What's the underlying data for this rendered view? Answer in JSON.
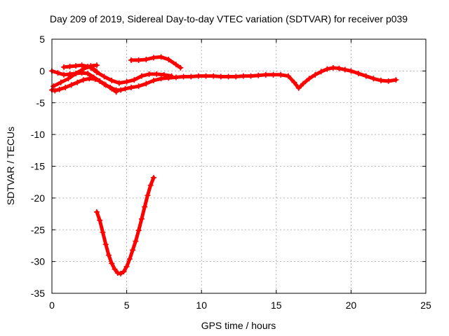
{
  "chart_data": {
    "type": "scatter",
    "title": "Day 209 of 2019, Sidereal Day-to-day VTEC variation (SDTVAR) for receiver p039",
    "xlabel": "GPS time / hours",
    "ylabel": "SDTVAR / TECUs",
    "xlim": [
      0,
      25
    ],
    "ylim": [
      -35,
      5
    ],
    "xticks": [
      0,
      5,
      10,
      15,
      20,
      25
    ],
    "yticks": [
      5,
      0,
      -5,
      -10,
      -15,
      -20,
      -25,
      -30,
      -35
    ],
    "grid": true,
    "legend": "none",
    "marker": "plus",
    "series_color": "#ff0000",
    "series": [
      {
        "name": "main-trace",
        "x": [
          0.0,
          0.2,
          0.5,
          0.9,
          1.3,
          1.7,
          2.1,
          2.5,
          2.9,
          3.2,
          3.5,
          3.9,
          4.3,
          4.6,
          4.9,
          5.3,
          5.8,
          6.3,
          6.8,
          7.3,
          7.8,
          8.3,
          8.8,
          9.3,
          9.8,
          10.3,
          10.8,
          11.3,
          11.8,
          12.3,
          12.8,
          13.3,
          13.8,
          14.3,
          14.8,
          15.3,
          15.8,
          16.2,
          16.5,
          16.8,
          17.2,
          17.6,
          18.0,
          18.4,
          18.8,
          19.2,
          19.6,
          20.0,
          20.5,
          21.0,
          21.5,
          22.0,
          22.5,
          23.0
        ],
        "y": [
          -3.0,
          -3.1,
          -2.9,
          -2.6,
          -2.2,
          -1.8,
          -1.4,
          -1.2,
          -1.3,
          -1.6,
          -2.1,
          -2.6,
          -3.0,
          -3.0,
          -2.8,
          -2.6,
          -2.4,
          -2.0,
          -1.5,
          -1.2,
          -1.1,
          -1.0,
          -0.9,
          -0.9,
          -0.8,
          -0.8,
          -0.8,
          -0.9,
          -0.9,
          -0.9,
          -0.8,
          -0.8,
          -0.7,
          -0.6,
          -0.6,
          -0.6,
          -0.8,
          -1.8,
          -2.7,
          -2.0,
          -1.2,
          -0.6,
          -0.1,
          0.3,
          0.5,
          0.4,
          0.2,
          0.0,
          -0.4,
          -0.8,
          -1.2,
          -1.5,
          -1.6,
          -1.4
        ]
      },
      {
        "name": "early-upper-trace",
        "x": [
          0.0,
          0.4,
          0.8,
          1.2,
          1.6,
          2.0,
          2.4,
          2.8,
          3.2,
          3.6,
          4.0,
          4.3
        ],
        "y": [
          0.0,
          -0.3,
          -0.6,
          -0.5,
          -0.4,
          -0.3,
          -0.4,
          -1.0,
          -1.6,
          -2.2,
          -2.8,
          -3.3
        ]
      },
      {
        "name": "hump-trace",
        "x": [
          0.8,
          1.2,
          1.6,
          2.0,
          2.4,
          2.8,
          3.0
        ],
        "y": [
          0.6,
          0.7,
          0.8,
          0.9,
          0.7,
          0.3,
          -0.1
        ]
      },
      {
        "name": "lower-left-trace",
        "x": [
          0.1,
          0.6,
          1.1,
          1.6,
          2.1,
          2.6,
          3.0
        ],
        "y": [
          -2.4,
          -1.8,
          -1.2,
          -0.4,
          0.3,
          0.8,
          0.9
        ]
      },
      {
        "name": "mid-branch-trace",
        "x": [
          2.6,
          3.0,
          3.5,
          4.0,
          4.5,
          5.0,
          5.5,
          6.0,
          6.5,
          7.0,
          7.5,
          8.0
        ],
        "y": [
          0.5,
          -0.2,
          -0.9,
          -1.5,
          -1.9,
          -1.7,
          -1.4,
          -0.8,
          -0.5,
          -0.5,
          -0.6,
          -0.8
        ]
      },
      {
        "name": "arc-trace",
        "x": [
          5.3,
          5.8,
          6.3,
          6.8,
          7.3,
          7.8,
          8.3,
          8.6
        ],
        "y": [
          1.7,
          1.7,
          1.8,
          2.1,
          2.2,
          1.8,
          1.0,
          0.5
        ]
      },
      {
        "name": "v-shaped-dip",
        "x": [
          3.0,
          3.2,
          3.4,
          3.6,
          3.8,
          4.0,
          4.2,
          4.4,
          4.6,
          4.8,
          5.0,
          5.2,
          5.4,
          5.6,
          5.8,
          6.0,
          6.2,
          6.4,
          6.6,
          6.8
        ],
        "y": [
          -22.2,
          -23.5,
          -25.4,
          -27.3,
          -29.0,
          -30.3,
          -31.2,
          -31.8,
          -31.9,
          -31.6,
          -30.8,
          -29.6,
          -28.2,
          -26.8,
          -25.1,
          -23.3,
          -21.4,
          -19.6,
          -18.0,
          -16.8
        ]
      }
    ]
  }
}
